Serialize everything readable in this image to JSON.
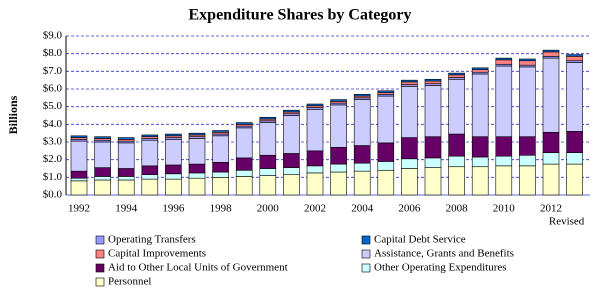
{
  "chart_data": {
    "type": "bar",
    "stacked": true,
    "title": "Expenditure Shares by Category",
    "y_label": "Billions",
    "categories": [
      "1992",
      null,
      "1994",
      null,
      "1996",
      null,
      "1998",
      null,
      "2000",
      null,
      "2002",
      null,
      "2004",
      null,
      "2006",
      null,
      "2008",
      null,
      "2010",
      null,
      "2012",
      "Revised"
    ],
    "ylim": [
      0,
      9
    ],
    "yticks": [
      {
        "value": 0,
        "label": "$0.0"
      },
      {
        "value": 1,
        "label": "$1.0"
      },
      {
        "value": 2,
        "label": "$2.0"
      },
      {
        "value": 3,
        "label": "$3.0"
      },
      {
        "value": 4,
        "label": "$4.0"
      },
      {
        "value": 5,
        "label": "$5.0"
      },
      {
        "value": 6,
        "label": "$6.0"
      },
      {
        "value": 7,
        "label": "$7.0"
      },
      {
        "value": 8,
        "label": "$8.0"
      },
      {
        "value": 9,
        "label": "$9.0"
      }
    ],
    "grid": true,
    "series": [
      {
        "name": "Personnel",
        "color": "#ffffcc",
        "values": [
          0.8,
          0.85,
          0.85,
          0.9,
          0.9,
          0.95,
          1.0,
          1.05,
          1.1,
          1.15,
          1.25,
          1.3,
          1.35,
          1.4,
          1.5,
          1.55,
          1.6,
          1.6,
          1.65,
          1.65,
          1.75,
          1.75
        ]
      },
      {
        "name": "Other Operating Expenditures",
        "color": "#ccffff",
        "values": [
          0.15,
          0.2,
          0.2,
          0.25,
          0.3,
          0.3,
          0.3,
          0.35,
          0.4,
          0.4,
          0.4,
          0.45,
          0.45,
          0.5,
          0.55,
          0.55,
          0.6,
          0.55,
          0.55,
          0.6,
          0.65,
          0.65
        ]
      },
      {
        "name": "Aid to Other Local Units of Government",
        "color": "#660066",
        "values": [
          0.4,
          0.5,
          0.45,
          0.5,
          0.5,
          0.5,
          0.55,
          0.7,
          0.75,
          0.8,
          0.85,
          0.95,
          1.0,
          1.05,
          1.2,
          1.2,
          1.25,
          1.15,
          1.1,
          1.05,
          1.15,
          1.2
        ]
      },
      {
        "name": "Assistance, Grants and Benefits",
        "color": "#ccccff",
        "values": [
          1.7,
          1.45,
          1.45,
          1.45,
          1.45,
          1.45,
          1.5,
          1.7,
          1.85,
          2.15,
          2.35,
          2.4,
          2.6,
          2.65,
          2.9,
          2.9,
          3.1,
          3.55,
          4.0,
          3.95,
          4.2,
          3.9
        ]
      },
      {
        "name": "Operating Transfers",
        "color": "#9999ff",
        "values": [
          0.1,
          0.1,
          0.1,
          0.1,
          0.1,
          0.1,
          0.1,
          0.1,
          0.1,
          0.1,
          0.1,
          0.1,
          0.1,
          0.1,
          0.1,
          0.1,
          0.1,
          0.1,
          0.1,
          0.1,
          0.1,
          0.1
        ]
      },
      {
        "name": "Capital Improvements",
        "color": "#ff8080",
        "values": [
          0.1,
          0.1,
          0.1,
          0.1,
          0.1,
          0.1,
          0.1,
          0.1,
          0.1,
          0.1,
          0.1,
          0.1,
          0.1,
          0.1,
          0.15,
          0.15,
          0.15,
          0.15,
          0.25,
          0.25,
          0.25,
          0.25
        ]
      },
      {
        "name": "Capital Debt Service",
        "color": "#0066cc",
        "values": [
          0.1,
          0.1,
          0.1,
          0.1,
          0.1,
          0.1,
          0.1,
          0.1,
          0.1,
          0.1,
          0.1,
          0.1,
          0.1,
          0.1,
          0.1,
          0.1,
          0.1,
          0.1,
          0.1,
          0.1,
          0.1,
          0.1
        ]
      }
    ]
  }
}
